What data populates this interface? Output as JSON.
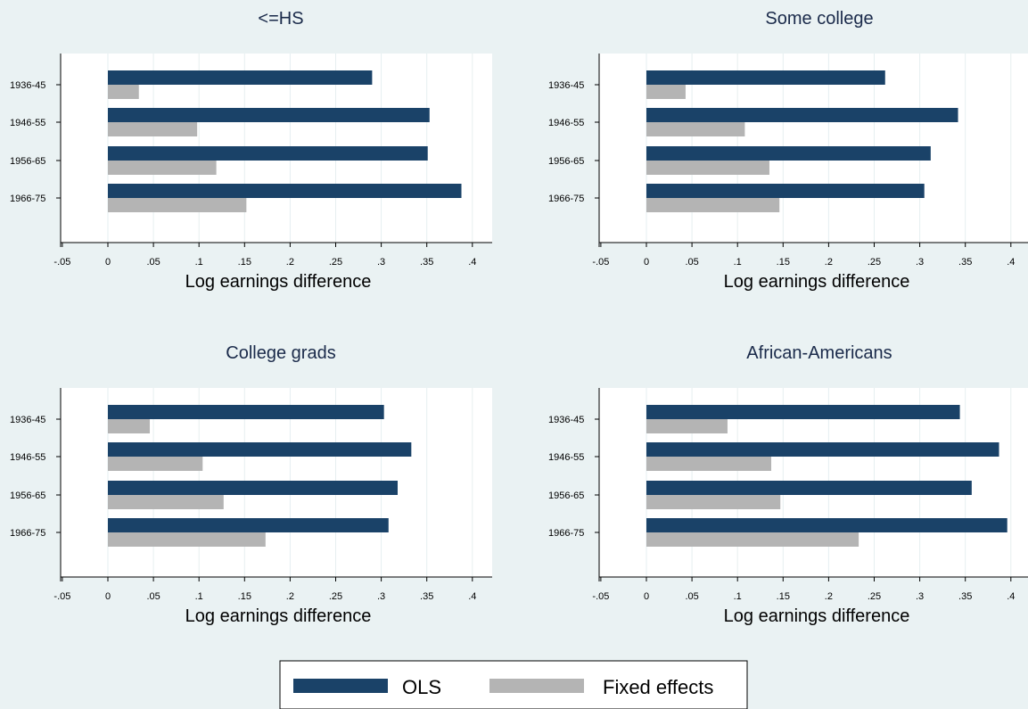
{
  "colors": {
    "background": "#EAF2F3",
    "plot_area": "#FFFFFF",
    "grid": "#E6EFF0",
    "ols": "#1A4268",
    "fe": "#B4B4B4"
  },
  "legend": {
    "items": [
      {
        "label": "OLS",
        "color": "#1A4268"
      },
      {
        "label": "Fixed effects",
        "color": "#B4B4B4"
      }
    ]
  },
  "chart_data": [
    {
      "type": "bar",
      "orientation": "horizontal",
      "title": "<=HS",
      "xlabel": "Log earnings difference",
      "categories": [
        "1936-45",
        "1946-55",
        "1956-65",
        "1966-75"
      ],
      "xlim": [
        -0.05,
        0.4
      ],
      "xticks": [
        "-.05",
        "0",
        ".05",
        ".1",
        ".15",
        ".2",
        ".25",
        ".3",
        ".35",
        ".4"
      ],
      "series": [
        {
          "name": "OLS",
          "values": [
            0.29,
            0.353,
            0.351,
            0.388
          ]
        },
        {
          "name": "Fixed effects",
          "values": [
            0.034,
            0.098,
            0.119,
            0.152
          ]
        }
      ]
    },
    {
      "type": "bar",
      "orientation": "horizontal",
      "title": "Some college",
      "xlabel": "Log earnings difference",
      "categories": [
        "1936-45",
        "1946-55",
        "1956-65",
        "1966-75"
      ],
      "xlim": [
        -0.05,
        0.4
      ],
      "xticks": [
        "-.05",
        "0",
        ".05",
        ".1",
        ".15",
        ".2",
        ".25",
        ".3",
        ".35",
        ".4"
      ],
      "series": [
        {
          "name": "OLS",
          "values": [
            0.262,
            0.342,
            0.312,
            0.305
          ]
        },
        {
          "name": "Fixed effects",
          "values": [
            0.043,
            0.108,
            0.135,
            0.146
          ]
        }
      ]
    },
    {
      "type": "bar",
      "orientation": "horizontal",
      "title": "College grads",
      "xlabel": "Log earnings difference",
      "categories": [
        "1936-45",
        "1946-55",
        "1956-65",
        "1966-75"
      ],
      "xlim": [
        -0.05,
        0.4
      ],
      "xticks": [
        "-.05",
        "0",
        ".05",
        ".1",
        ".15",
        ".2",
        ".25",
        ".3",
        ".35",
        ".4"
      ],
      "series": [
        {
          "name": "OLS",
          "values": [
            0.303,
            0.333,
            0.318,
            0.308
          ]
        },
        {
          "name": "Fixed effects",
          "values": [
            0.046,
            0.104,
            0.127,
            0.173
          ]
        }
      ]
    },
    {
      "type": "bar",
      "orientation": "horizontal",
      "title": "African-Americans",
      "xlabel": "Log earnings difference",
      "categories": [
        "1936-45",
        "1946-55",
        "1956-65",
        "1966-75"
      ],
      "xlim": [
        -0.05,
        0.4
      ],
      "xticks": [
        "-.05",
        "0",
        ".05",
        ".1",
        ".15",
        ".2",
        ".25",
        ".3",
        ".35",
        ".4"
      ],
      "series": [
        {
          "name": "OLS",
          "values": [
            0.344,
            0.387,
            0.357,
            0.396
          ]
        },
        {
          "name": "Fixed effects",
          "values": [
            0.089,
            0.137,
            0.147,
            0.233
          ]
        }
      ]
    }
  ]
}
